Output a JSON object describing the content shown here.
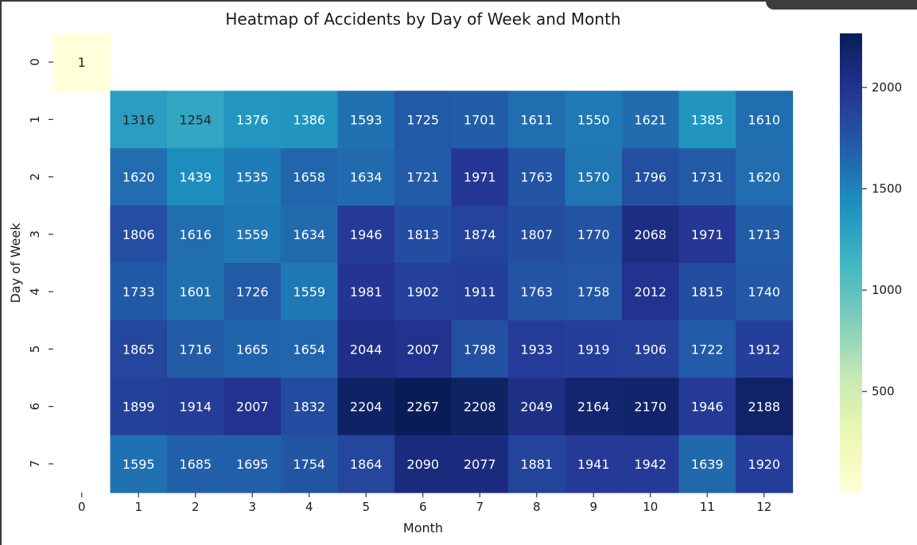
{
  "chart_data": {
    "type": "heatmap",
    "title": "Heatmap of Accidents by Day of Week and Month",
    "xlabel": "Month",
    "ylabel": "Day of Week",
    "x_categories": [
      "0",
      "1",
      "2",
      "3",
      "4",
      "5",
      "6",
      "7",
      "8",
      "9",
      "10",
      "11",
      "12"
    ],
    "y_categories": [
      "0",
      "1",
      "2",
      "3",
      "4",
      "5",
      "6",
      "7"
    ],
    "values": [
      [
        1,
        null,
        null,
        null,
        null,
        null,
        null,
        null,
        null,
        null,
        null,
        null,
        null
      ],
      [
        null,
        1316,
        1254,
        1376,
        1386,
        1593,
        1725,
        1701,
        1611,
        1550,
        1621,
        1385,
        1610
      ],
      [
        null,
        1620,
        1439,
        1535,
        1658,
        1634,
        1721,
        1971,
        1763,
        1570,
        1796,
        1731,
        1620
      ],
      [
        null,
        1806,
        1616,
        1559,
        1634,
        1946,
        1813,
        1874,
        1807,
        1770,
        2068,
        1971,
        1713
      ],
      [
        null,
        1733,
        1601,
        1726,
        1559,
        1981,
        1902,
        1911,
        1763,
        1758,
        2012,
        1815,
        1740
      ],
      [
        null,
        1865,
        1716,
        1665,
        1654,
        2044,
        2007,
        1798,
        1933,
        1919,
        1906,
        1722,
        1912
      ],
      [
        null,
        1899,
        1914,
        2007,
        1832,
        2204,
        2267,
        2208,
        2049,
        2164,
        2170,
        1946,
        2188
      ],
      [
        null,
        1595,
        1685,
        1695,
        1754,
        1864,
        2090,
        2077,
        1881,
        1941,
        1942,
        1639,
        1920
      ]
    ],
    "colorscale": "YlGnBu",
    "colorbar": {
      "min": 1,
      "max": 2267,
      "ticks": [
        500,
        1000,
        1500,
        2000
      ]
    },
    "grid": false
  }
}
